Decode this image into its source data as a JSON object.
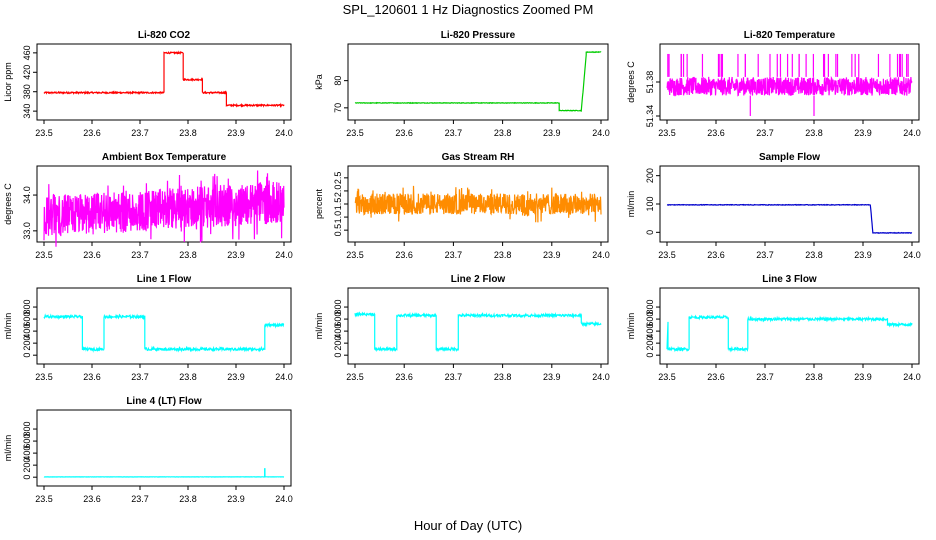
{
  "title": "SPL_120601  1 Hz Diagnostics Zoomed PM",
  "xlabel": "Hour of Day (UTC)",
  "chart_data": [
    {
      "type": "line",
      "title": "Li-820 CO2",
      "ylabel": "Licor ppm",
      "color": "#ff0000",
      "xlim": [
        23.5,
        24.0
      ],
      "ylim": [
        330,
        470
      ],
      "x_ticks": [
        23.5,
        23.6,
        23.7,
        23.8,
        23.9,
        24.0
      ],
      "y_ticks": [
        340,
        380,
        420,
        460
      ],
      "segments": [
        {
          "x": [
            23.5,
            23.75
          ],
          "y": [
            378,
            378
          ]
        },
        {
          "x": [
            23.75,
            23.79
          ],
          "y": [
            460,
            460
          ]
        },
        {
          "x": [
            23.79,
            23.83
          ],
          "y": [
            405,
            405
          ]
        },
        {
          "x": [
            23.83,
            23.88
          ],
          "y": [
            378,
            378
          ]
        },
        {
          "x": [
            23.88,
            24.0
          ],
          "y": [
            352,
            352
          ]
        }
      ],
      "noise": 1.5
    },
    {
      "type": "line",
      "title": "Li-820 Pressure",
      "ylabel": "kPa",
      "color": "#00cc00",
      "xlim": [
        23.5,
        24.0
      ],
      "ylim": [
        67,
        92
      ],
      "x_ticks": [
        23.5,
        23.6,
        23.7,
        23.8,
        23.9,
        24.0
      ],
      "y_ticks": [
        70,
        80
      ],
      "segments": [
        {
          "x": [
            23.5,
            23.915
          ],
          "y": [
            71.8,
            71.8
          ]
        },
        {
          "x": [
            23.915,
            23.96
          ],
          "y": [
            69.0,
            69.0
          ]
        },
        {
          "x": [
            23.96,
            23.97
          ],
          "y": [
            69.0,
            89.5
          ]
        },
        {
          "x": [
            23.97,
            24.0
          ],
          "y": [
            90.5,
            90.5
          ]
        }
      ],
      "noise": 0.1
    },
    {
      "type": "line",
      "title": "Li-820 Temperature",
      "ylabel": "degrees C",
      "color": "#ff00ff",
      "xlim": [
        23.5,
        24.0
      ],
      "ylim": [
        51.34,
        51.42
      ],
      "x_ticks": [
        23.5,
        23.6,
        23.7,
        23.8,
        23.9,
        24.0
      ],
      "y_ticks": [
        51.34,
        51.38
      ],
      "y_tick_labels": [
        "51.34",
        "51.38"
      ],
      "band": [
        51.364,
        51.386
      ],
      "spikes_up": 51.413,
      "spikes_down": 51.34
    },
    {
      "type": "line",
      "title": "Ambient Box Temperature",
      "ylabel": "degrees C",
      "color": "#ff00ff",
      "xlim": [
        23.5,
        24.0
      ],
      "ylim": [
        32.8,
        34.7
      ],
      "x_ticks": [
        23.5,
        23.6,
        23.7,
        23.8,
        23.9,
        24.0
      ],
      "y_ticks": [
        33.0,
        34.0
      ],
      "y_tick_labels": [
        "33.0",
        "34.0"
      ],
      "band": [
        33.0,
        34.3
      ],
      "mean": [
        33.4,
        33.8
      ]
    },
    {
      "type": "line",
      "title": "Gas Stream RH",
      "ylabel": "percent",
      "color": "#ff8c00",
      "xlim": [
        23.5,
        24.0
      ],
      "ylim": [
        0.2,
        2.8
      ],
      "x_ticks": [
        23.5,
        23.6,
        23.7,
        23.8,
        23.9,
        24.0
      ],
      "y_ticks": [
        0.5,
        1.0,
        1.5,
        2.0,
        2.5
      ],
      "y_tick_labels": [
        "0.5",
        "1.0",
        "1.5",
        "2.0",
        "2.5"
      ],
      "band": [
        1.05,
        1.95
      ],
      "mean": [
        1.5,
        1.5
      ]
    },
    {
      "type": "line",
      "title": "Sample Flow",
      "ylabel": "ml/min",
      "color": "#0000cc",
      "xlim": [
        23.5,
        24.0
      ],
      "ylim": [
        -20,
        220
      ],
      "x_ticks": [
        23.5,
        23.6,
        23.7,
        23.8,
        23.9,
        24.0
      ],
      "y_ticks": [
        0,
        100,
        200
      ],
      "segments": [
        {
          "x": [
            23.5,
            23.915
          ],
          "y": [
            97,
            97
          ]
        },
        {
          "x": [
            23.915,
            23.92
          ],
          "y": [
            97,
            0
          ]
        },
        {
          "x": [
            23.92,
            24.0
          ],
          "y": [
            -2,
            -2
          ]
        }
      ],
      "noise": 1.0
    },
    {
      "type": "line",
      "title": "Line 1 Flow",
      "ylabel": "ml/min",
      "color": "#00ffff",
      "xlim": [
        23.5,
        24.0
      ],
      "ylim": [
        -80,
        1050
      ],
      "x_ticks": [
        23.5,
        23.6,
        23.7,
        23.8,
        23.9,
        24.0
      ],
      "y_ticks": [
        0,
        200,
        400,
        600,
        800
      ],
      "segments": [
        {
          "x": [
            23.5,
            23.58
          ],
          "y": [
            640,
            640
          ]
        },
        {
          "x": [
            23.58,
            23.625
          ],
          "y": [
            100,
            100
          ]
        },
        {
          "x": [
            23.625,
            23.71
          ],
          "y": [
            640,
            640
          ]
        },
        {
          "x": [
            23.71,
            23.96
          ],
          "y": [
            100,
            100
          ]
        },
        {
          "x": [
            23.96,
            24.0
          ],
          "y": [
            500,
            500
          ]
        }
      ],
      "noise": 22
    },
    {
      "type": "line",
      "title": "Line 2 Flow",
      "ylabel": "ml/min",
      "color": "#00ffff",
      "xlim": [
        23.5,
        24.0
      ],
      "ylim": [
        -80,
        1050
      ],
      "x_ticks": [
        23.5,
        23.6,
        23.7,
        23.8,
        23.9,
        24.0
      ],
      "y_ticks": [
        0,
        200,
        400,
        600,
        800
      ],
      "segments": [
        {
          "x": [
            23.5,
            23.54
          ],
          "y": [
            680,
            680
          ]
        },
        {
          "x": [
            23.54,
            23.585
          ],
          "y": [
            100,
            100
          ]
        },
        {
          "x": [
            23.585,
            23.665
          ],
          "y": [
            660,
            660
          ]
        },
        {
          "x": [
            23.665,
            23.71
          ],
          "y": [
            100,
            100
          ]
        },
        {
          "x": [
            23.71,
            23.96
          ],
          "y": [
            660,
            660
          ]
        },
        {
          "x": [
            23.96,
            24.0
          ],
          "y": [
            520,
            520
          ]
        }
      ],
      "noise": 22
    },
    {
      "type": "line",
      "title": "Line 3 Flow",
      "ylabel": "ml/min",
      "color": "#00ffff",
      "xlim": [
        23.5,
        24.0
      ],
      "ylim": [
        -80,
        1050
      ],
      "x_ticks": [
        23.5,
        23.6,
        23.7,
        23.8,
        23.9,
        24.0
      ],
      "y_ticks": [
        0,
        200,
        400,
        600,
        800
      ],
      "segments": [
        {
          "x": [
            23.5,
            23.502
          ],
          "y": [
            100,
            560
          ]
        },
        {
          "x": [
            23.502,
            23.545
          ],
          "y": [
            100,
            100
          ]
        },
        {
          "x": [
            23.545,
            23.625
          ],
          "y": [
            630,
            630
          ]
        },
        {
          "x": [
            23.625,
            23.665
          ],
          "y": [
            100,
            100
          ]
        },
        {
          "x": [
            23.665,
            23.95
          ],
          "y": [
            600,
            600
          ]
        },
        {
          "x": [
            23.95,
            24.0
          ],
          "y": [
            510,
            510
          ]
        }
      ],
      "noise": 22
    },
    {
      "type": "line",
      "title": "Line 4 (LT) Flow",
      "ylabel": "ml/min",
      "color": "#00ffff",
      "xlim": [
        23.5,
        24.0
      ],
      "ylim": [
        -80,
        1050
      ],
      "x_ticks": [
        23.5,
        23.6,
        23.7,
        23.8,
        23.9,
        24.0
      ],
      "y_ticks": [
        0,
        200,
        400,
        600,
        800
      ],
      "segments": [
        {
          "x": [
            23.5,
            24.0
          ],
          "y": [
            5,
            5
          ]
        }
      ],
      "spike": {
        "x": 23.96,
        "y": 150
      },
      "noise": 2
    }
  ]
}
